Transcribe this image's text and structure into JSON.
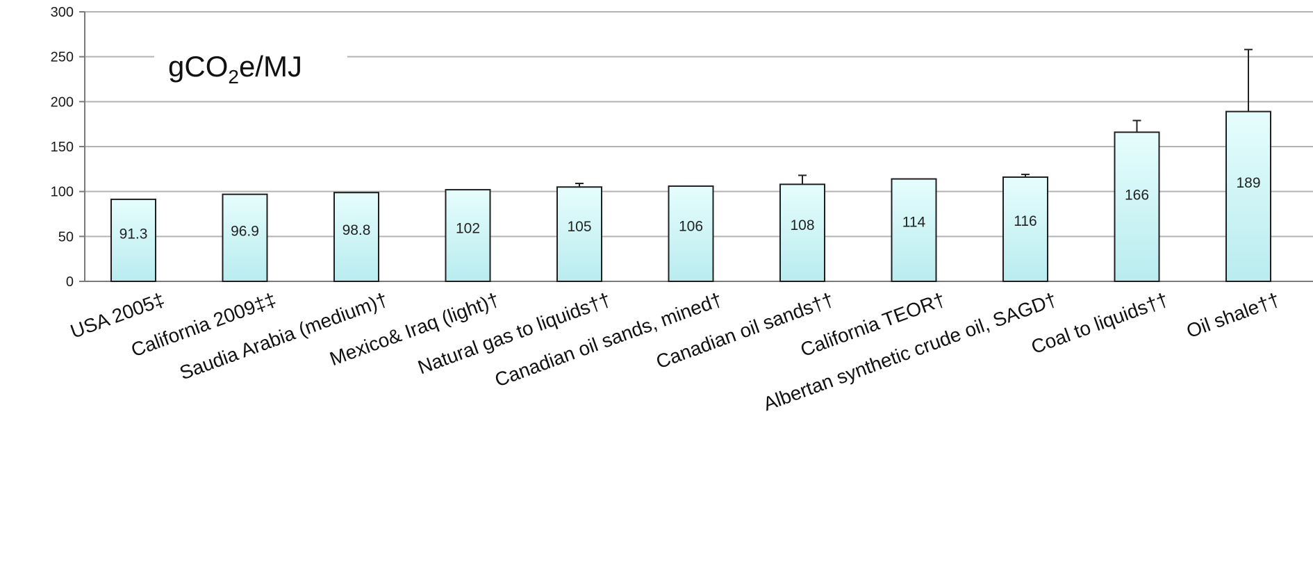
{
  "chart_data": {
    "type": "bar",
    "unit_label": {
      "prefix": "gCO",
      "sub": "2",
      "suffix": "e/MJ"
    },
    "categories": [
      "USA 2005‡",
      "California 2009‡‡",
      "Saudia Arabia (medium)†",
      "Mexico& Iraq (light)†",
      "Natural gas to liquids††",
      "Canadian oil sands, mined†",
      "Canadian oil sands††",
      "California TEOR†",
      "Albertan synthetic crude oil, SAGD†",
      "Coal to liquids††",
      "Oil shale††"
    ],
    "values": [
      91.3,
      96.9,
      98.8,
      102,
      105,
      106,
      108,
      114,
      116,
      166,
      189
    ],
    "data_labels": [
      "91.3",
      "96.9",
      "98.8",
      "102",
      "105",
      "106",
      "108",
      "114",
      "116",
      "166",
      "189"
    ],
    "error_upper": [
      91.3,
      96.9,
      98.8,
      102,
      109,
      106,
      118,
      114,
      119,
      179,
      258
    ],
    "ylim": [
      0,
      300
    ],
    "yticks": [
      0,
      50,
      100,
      150,
      200,
      250,
      300
    ],
    "grid": true,
    "colors": {
      "bar_top": "#e6fdfd",
      "bar_bottom": "#b9ecef",
      "bar_stroke": "#1f1f1f",
      "grid": "#b3b3b3",
      "axis": "#7a7a7a"
    }
  }
}
